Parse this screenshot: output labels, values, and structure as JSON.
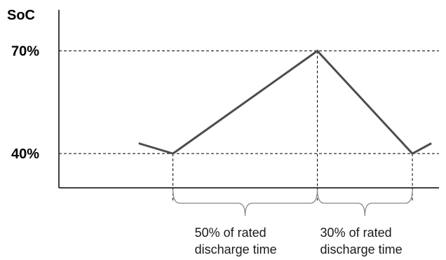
{
  "chart_data": {
    "type": "line",
    "ylabel": "SoC",
    "xlabel": "",
    "yticks": [
      "40%",
      "70%"
    ],
    "ytick_values": [
      40,
      70
    ],
    "ylim": [
      30,
      82
    ],
    "xlim": [
      0,
      100
    ],
    "grid": false,
    "series": [
      {
        "x": [
          21,
          30,
          68,
          93,
          98
        ],
        "values": [
          43,
          40,
          70,
          40,
          43
        ]
      }
    ],
    "annotations": [
      {
        "text_lines": [
          "50% of rated",
          "discharge time"
        ],
        "from_x": 30,
        "to_x": 68
      },
      {
        "text_lines": [
          "30% of rated",
          "discharge time"
        ],
        "from_x": 68,
        "to_x": 93
      }
    ],
    "colors": {
      "line": "#4d4d4d",
      "brace": "#888888",
      "axis": "#000000"
    }
  }
}
